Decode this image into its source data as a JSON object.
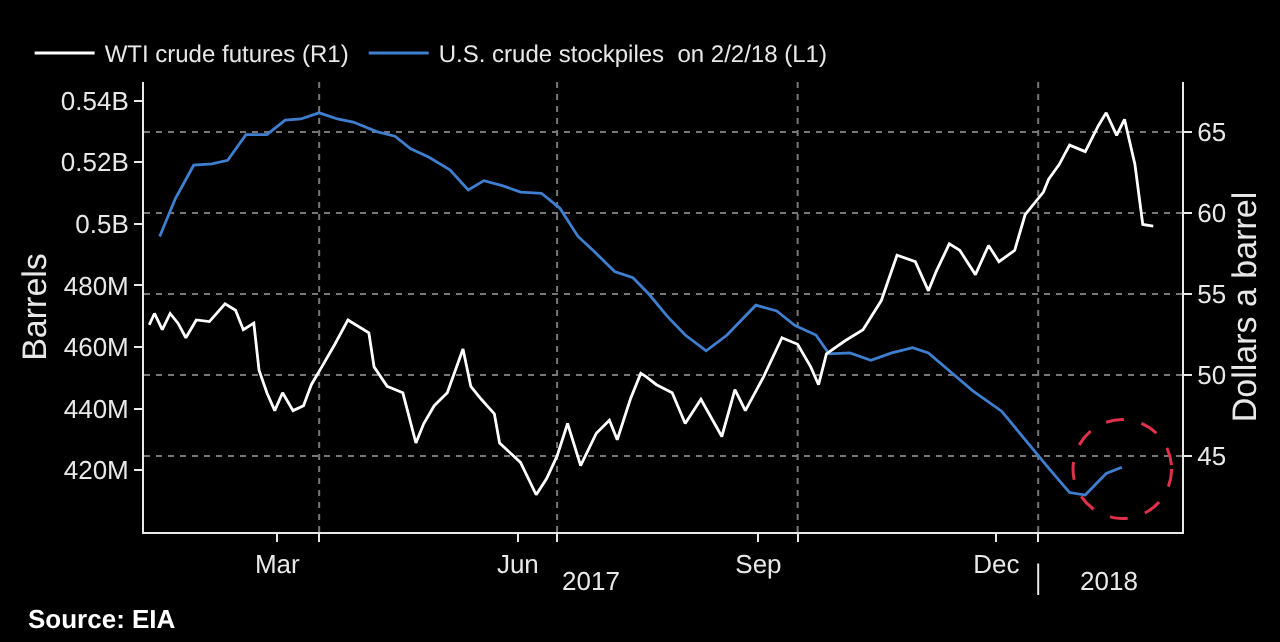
{
  "chart_data": {
    "type": "line",
    "annotations": [
      "2017",
      "2018",
      "Source: EIA"
    ],
    "ylabel": "Barrels",
    "y2label": "Dollars a barrel",
    "legend": "top left",
    "grid": true,
    "marker": "none",
    "line_style": "solid",
    "xlim": [
      "2017-01-24",
      "2018-02-25"
    ],
    "xticks": [
      {
        "value": "2017-03-16",
        "label": "Mar"
      },
      {
        "value": "2017-04-01",
        "label": null
      },
      {
        "value": "2017-06-16",
        "label": "Jun"
      },
      {
        "value": "2017-07-01",
        "label": null
      },
      {
        "value": "2017-09-16",
        "label": "Sep"
      },
      {
        "value": "2017-10-01",
        "label": null
      },
      {
        "value": "2017-12-16",
        "label": "Dec"
      },
      {
        "value": "2018-01-01",
        "label": null
      }
    ],
    "ylim": [
      400000000,
      546000000
    ],
    "yticks": [
      {
        "value": 420000000,
        "label": "420M"
      },
      {
        "value": 440000000,
        "label": "440M"
      },
      {
        "value": 460000000,
        "label": "460M"
      },
      {
        "value": 480000000,
        "label": "480M"
      },
      {
        "value": 500000000,
        "label": "0.5B"
      },
      {
        "value": 520000000,
        "label": "0.52B"
      },
      {
        "value": 540000000,
        "label": "0.54B"
      }
    ],
    "y2lim": [
      40.3,
      68.1
    ],
    "y2ticks": [
      45,
      50,
      55,
      60,
      65
    ],
    "series": [
      {
        "name": "WTI crude futures (R1)",
        "color": "#ffffff",
        "axis": "y2",
        "x": [
          "2017-01-26",
          "2017-01-28",
          "2017-01-31",
          "2017-02-03",
          "2017-02-06",
          "2017-02-09",
          "2017-02-13",
          "2017-02-18",
          "2017-02-24",
          "2017-02-28",
          "2017-03-03",
          "2017-03-07",
          "2017-03-09",
          "2017-03-12",
          "2017-03-15",
          "2017-03-18",
          "2017-03-22",
          "2017-03-26",
          "2017-03-29",
          "2017-04-02",
          "2017-04-07",
          "2017-04-12",
          "2017-04-20",
          "2017-04-22",
          "2017-04-27",
          "2017-05-03",
          "2017-05-08",
          "2017-05-11",
          "2017-05-15",
          "2017-05-20",
          "2017-05-26",
          "2017-05-29",
          "2017-06-02",
          "2017-06-07",
          "2017-06-09",
          "2017-06-17",
          "2017-06-23",
          "2017-06-27",
          "2017-07-01",
          "2017-07-05",
          "2017-07-10",
          "2017-07-16",
          "2017-07-21",
          "2017-07-24",
          "2017-07-29",
          "2017-08-02",
          "2017-08-04",
          "2017-08-08",
          "2017-08-14",
          "2017-08-19",
          "2017-08-25",
          "2017-09-02",
          "2017-09-07",
          "2017-09-11",
          "2017-09-18",
          "2017-09-25",
          "2017-10-01",
          "2017-10-06",
          "2017-10-09",
          "2017-10-12",
          "2017-10-19",
          "2017-10-26",
          "2017-11-02",
          "2017-11-08",
          "2017-11-15",
          "2017-11-20",
          "2017-11-23",
          "2017-11-28",
          "2017-12-02",
          "2017-12-08",
          "2017-12-13",
          "2017-12-17",
          "2017-12-23",
          "2017-12-27",
          "2018-01-03",
          "2018-01-05",
          "2018-01-09",
          "2018-01-13",
          "2018-01-19",
          "2018-01-24",
          "2018-01-27",
          "2018-01-31",
          "2018-02-03",
          "2018-02-07",
          "2018-02-10",
          "2018-02-14"
        ],
        "values": [
          53.1,
          53.8,
          52.8,
          53.8,
          53.2,
          52.3,
          53.4,
          53.3,
          54.4,
          54.0,
          52.8,
          53.2,
          50.3,
          48.9,
          47.8,
          48.9,
          47.8,
          48.1,
          49.4,
          50.5,
          51.9,
          53.4,
          52.6,
          50.5,
          49.3,
          48.9,
          45.8,
          47.0,
          48.1,
          48.9,
          51.6,
          49.3,
          48.5,
          47.6,
          45.8,
          44.6,
          42.6,
          43.6,
          45.0,
          47.0,
          44.4,
          46.4,
          47.2,
          46.0,
          48.5,
          50.1,
          49.9,
          49.4,
          48.9,
          47.0,
          48.5,
          46.2,
          49.1,
          47.8,
          49.9,
          52.3,
          51.9,
          50.5,
          49.4,
          51.3,
          52.1,
          52.8,
          54.6,
          57.4,
          57.0,
          55.2,
          56.4,
          58.1,
          57.7,
          56.2,
          58.0,
          57.0,
          57.7,
          59.9,
          61.3,
          62.1,
          63.0,
          64.2,
          63.8,
          65.4,
          66.2,
          64.8,
          65.8,
          63.0,
          59.3,
          59.2
        ]
      },
      {
        "name": "U.S. crude stockpiles  on 2/2/18 (L1)",
        "color": "#3f7fd0",
        "axis": "y",
        "x": [
          "2017-01-30",
          "2017-02-05",
          "2017-02-12",
          "2017-02-19",
          "2017-02-25",
          "2017-03-04",
          "2017-03-12",
          "2017-03-19",
          "2017-03-25",
          "2017-04-01",
          "2017-04-08",
          "2017-04-14",
          "2017-04-23",
          "2017-04-30",
          "2017-05-06",
          "2017-05-13",
          "2017-05-21",
          "2017-05-28",
          "2017-06-03",
          "2017-06-10",
          "2017-06-17",
          "2017-06-25",
          "2017-07-02",
          "2017-07-09",
          "2017-07-15",
          "2017-07-23",
          "2017-07-30",
          "2017-08-05",
          "2017-08-12",
          "2017-08-19",
          "2017-08-27",
          "2017-09-04",
          "2017-09-15",
          "2017-09-23",
          "2017-09-30",
          "2017-10-08",
          "2017-10-13",
          "2017-10-21",
          "2017-10-29",
          "2017-11-06",
          "2017-11-14",
          "2017-11-20",
          "2017-11-29",
          "2017-12-07",
          "2017-12-18",
          "2017-12-25",
          "2018-01-05",
          "2018-01-13",
          "2018-01-19",
          "2018-01-27",
          "2018-02-02"
        ],
        "values": [
          495900000,
          508200000,
          519000000,
          519400000,
          520600000,
          528900000,
          528900000,
          533600000,
          534000000,
          536000000,
          534000000,
          533000000,
          529900000,
          528400000,
          524300000,
          521600000,
          517500000,
          511000000,
          514000000,
          512400000,
          510300000,
          509900000,
          505100000,
          495900000,
          491200000,
          484500000,
          482500000,
          477300000,
          470100000,
          463900000,
          458800000,
          463900000,
          473600000,
          471700000,
          467000000,
          463900000,
          457800000,
          458100000,
          455700000,
          458100000,
          459800000,
          458100000,
          451600000,
          445800000,
          439200000,
          432000000,
          420700000,
          412800000,
          412000000,
          419000000,
          421000000
        ]
      }
    ]
  }
}
